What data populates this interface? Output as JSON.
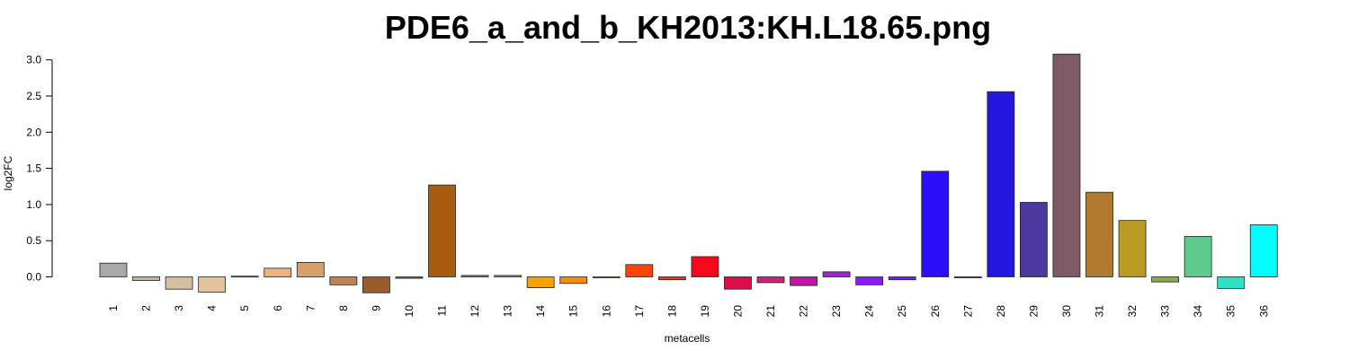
{
  "chart_data": {
    "type": "bar",
    "title": "PDE6_a_and_b_KH2013:KH.L18.65.png",
    "xlabel": "metacells",
    "ylabel": "log2FC",
    "ylim": [
      -0.22,
      3.1
    ],
    "yticks": [
      "0.0",
      "0.5",
      "1.0",
      "1.5",
      "2.0",
      "2.5",
      "3.0"
    ],
    "grid": false,
    "categories": [
      "1",
      "2",
      "3",
      "4",
      "5",
      "6",
      "7",
      "8",
      "9",
      "10",
      "11",
      "12",
      "13",
      "14",
      "15",
      "16",
      "17",
      "18",
      "19",
      "20",
      "21",
      "22",
      "23",
      "24",
      "25",
      "26",
      "27",
      "28",
      "29",
      "30",
      "31",
      "32",
      "33",
      "34",
      "35",
      "36"
    ],
    "values": [
      0.19,
      -0.05,
      -0.17,
      -0.21,
      0.01,
      0.12,
      0.2,
      -0.11,
      -0.22,
      -0.02,
      1.27,
      0.02,
      0.02,
      -0.15,
      -0.09,
      -0.01,
      0.17,
      -0.04,
      0.28,
      -0.17,
      -0.08,
      -0.12,
      0.07,
      -0.11,
      -0.04,
      1.46,
      -0.01,
      2.56,
      1.03,
      3.08,
      1.17,
      0.78,
      -0.07,
      0.56,
      -0.16,
      0.72
    ],
    "colors": [
      "#a8a8a8",
      "#c3b59f",
      "#d4bea2",
      "#e2c49c",
      "#e0b88a",
      "#eeb27e",
      "#d7a06b",
      "#be8354",
      "#9a5a2b",
      "#a45f27",
      "#a85c10",
      "#b2781c",
      "#c48a2a",
      "#f7a200",
      "#fc8a0c",
      "#f87a14",
      "#fc4408",
      "#e33c1c",
      "#f7071c",
      "#df0c4c",
      "#d1207a",
      "#c114a8",
      "#a71ee0",
      "#8a1cf7",
      "#6a20f4",
      "#2e0cfc",
      "#331adf",
      "#2416dd",
      "#4c389f",
      "#7e5a66",
      "#b07a2e",
      "#ba9c22",
      "#8ca84a",
      "#5ecb8e",
      "#2ee0c6",
      "#00fcfc"
    ]
  }
}
